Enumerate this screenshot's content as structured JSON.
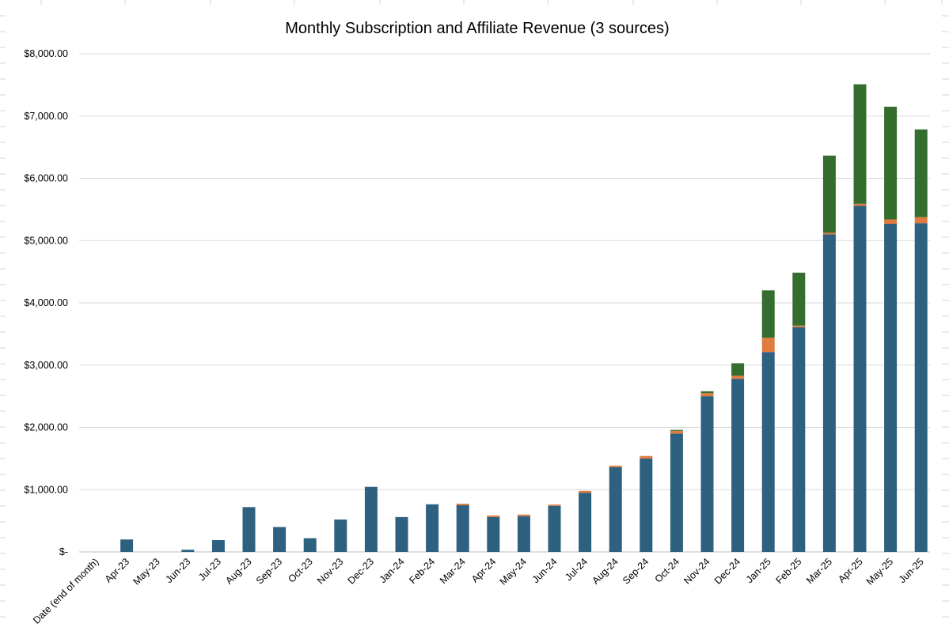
{
  "chart_data": {
    "type": "bar",
    "stacked": true,
    "title": "Monthly Subscription and Affiliate Revenue (3 sources)",
    "xlabel": "",
    "ylabel": "",
    "ylim": [
      0,
      8000
    ],
    "yticks": [
      0,
      1000,
      2000,
      3000,
      4000,
      5000,
      6000,
      7000,
      8000
    ],
    "ytick_labels": [
      "$-",
      "$1,000.00",
      "$2,000.00",
      "$3,000.00",
      "$4,000.00",
      "$5,000.00",
      "$6,000.00",
      "$7,000.00",
      "$8,000.00"
    ],
    "grid": true,
    "legend": "none",
    "categories": [
      "Date (end of month)",
      "Apr-23",
      "May-23",
      "Jun-23",
      "Jul-23",
      "Aug-23",
      "Sep-23",
      "Oct-23",
      "Nov-23",
      "Dec-23",
      "Jan-24",
      "Feb-24",
      "Mar-24",
      "Apr-24",
      "May-24",
      "Jun-24",
      "Jul-24",
      "Aug-24",
      "Sep-24",
      "Oct-24",
      "Nov-24",
      "Dec-24",
      "Jan-25",
      "Feb-25",
      "Mar-25",
      "Apr-25",
      "May-25",
      "Jun-25"
    ],
    "series": [
      {
        "color": "#2e6080",
        "values": [
          0,
          200,
          0,
          35,
          190,
          720,
          400,
          220,
          520,
          1045,
          560,
          765,
          750,
          560,
          575,
          740,
          950,
          1360,
          1500,
          1900,
          2500,
          2780,
          3210,
          3610,
          5100,
          5560,
          5270,
          5280
        ]
      },
      {
        "color": "#e07a3e",
        "values": [
          0,
          0,
          0,
          0,
          0,
          0,
          0,
          0,
          0,
          0,
          0,
          0,
          25,
          25,
          25,
          20,
          30,
          25,
          40,
          45,
          50,
          50,
          230,
          25,
          25,
          30,
          70,
          95
        ]
      },
      {
        "color": "#356d2f",
        "values": [
          0,
          0,
          0,
          0,
          0,
          0,
          0,
          0,
          0,
          0,
          0,
          0,
          0,
          0,
          0,
          0,
          0,
          0,
          0,
          15,
          30,
          200,
          760,
          850,
          1240,
          1920,
          1810,
          1410
        ]
      }
    ]
  }
}
